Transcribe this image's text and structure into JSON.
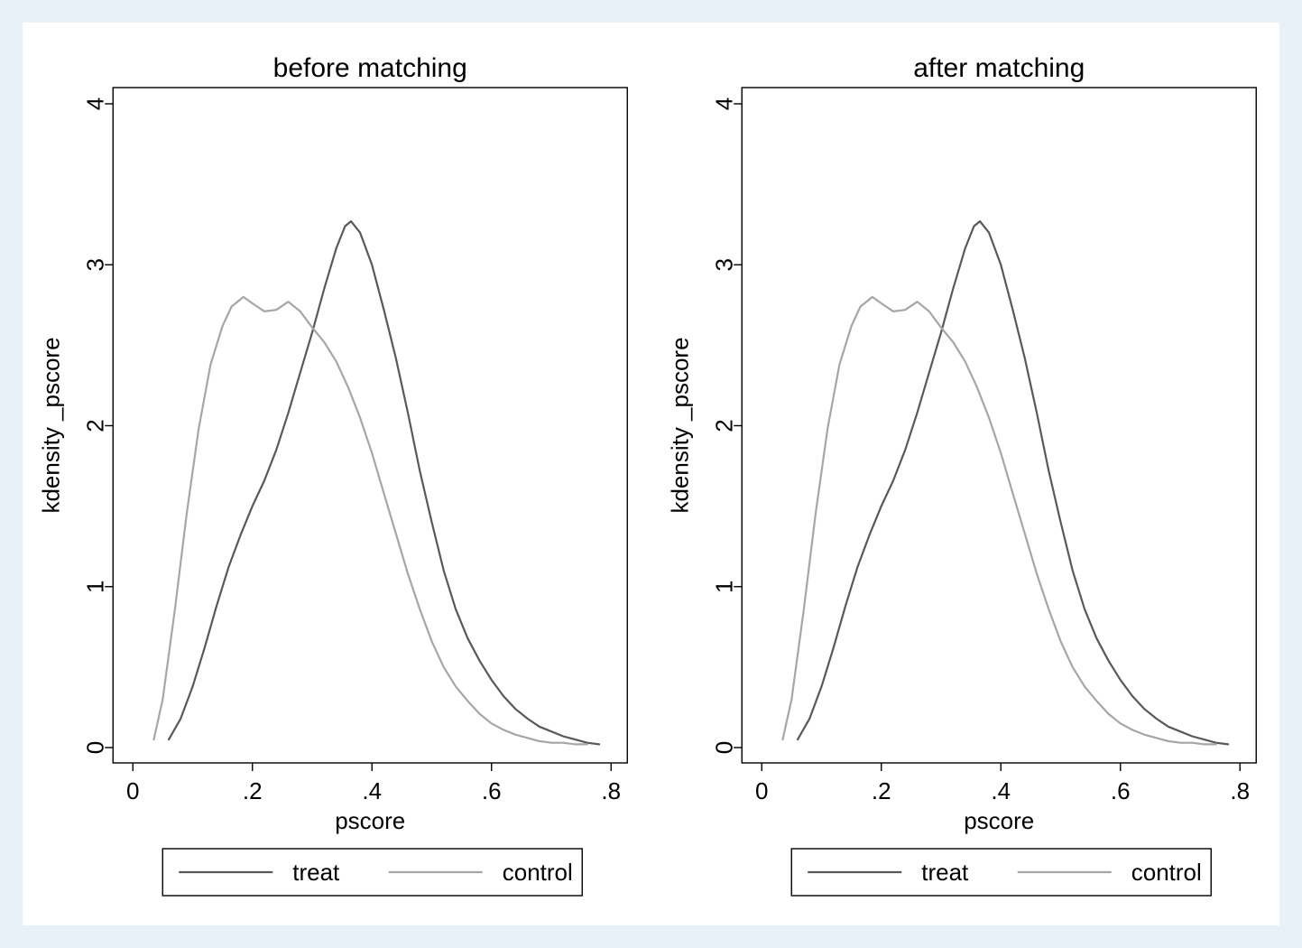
{
  "page": {
    "background_color": "#e8f1f8",
    "figure_background": "#ffffff",
    "frame_color": "#000000",
    "text_color": "#000000"
  },
  "chart_data": [
    {
      "type": "line",
      "title": "before matching",
      "xlabel": "pscore",
      "ylabel": "kdensity _pscore",
      "xlim": [
        0,
        0.8
      ],
      "ylim": [
        0,
        4
      ],
      "xticks": [
        0,
        0.2,
        0.4,
        0.6,
        0.8
      ],
      "xtick_labels": [
        "0",
        ".2",
        ".4",
        ".6",
        ".8"
      ],
      "yticks": [
        0,
        1,
        2,
        3,
        4
      ],
      "ytick_labels": [
        "0",
        "1",
        "2",
        "3",
        "4"
      ],
      "grid": false,
      "legend_position": "bottom",
      "series": [
        {
          "name": "treat",
          "color": "#595959",
          "x": [
            0.06,
            0.08,
            0.1,
            0.12,
            0.14,
            0.16,
            0.18,
            0.2,
            0.22,
            0.24,
            0.26,
            0.28,
            0.3,
            0.32,
            0.34,
            0.355,
            0.365,
            0.38,
            0.4,
            0.42,
            0.44,
            0.46,
            0.48,
            0.5,
            0.52,
            0.54,
            0.56,
            0.58,
            0.6,
            0.62,
            0.64,
            0.66,
            0.68,
            0.7,
            0.72,
            0.74,
            0.76,
            0.78
          ],
          "y": [
            0.05,
            0.18,
            0.38,
            0.62,
            0.88,
            1.12,
            1.32,
            1.5,
            1.66,
            1.85,
            2.08,
            2.33,
            2.58,
            2.85,
            3.1,
            3.24,
            3.27,
            3.2,
            3.0,
            2.72,
            2.42,
            2.08,
            1.72,
            1.4,
            1.1,
            0.86,
            0.68,
            0.54,
            0.42,
            0.32,
            0.24,
            0.18,
            0.13,
            0.1,
            0.07,
            0.05,
            0.03,
            0.02
          ]
        },
        {
          "name": "control",
          "color": "#a6a6a6",
          "x": [
            0.035,
            0.05,
            0.07,
            0.09,
            0.11,
            0.13,
            0.15,
            0.165,
            0.185,
            0.2,
            0.22,
            0.24,
            0.26,
            0.28,
            0.3,
            0.32,
            0.34,
            0.36,
            0.38,
            0.4,
            0.42,
            0.44,
            0.46,
            0.48,
            0.5,
            0.52,
            0.54,
            0.56,
            0.58,
            0.6,
            0.62,
            0.64,
            0.66,
            0.68,
            0.7,
            0.72,
            0.74,
            0.76
          ],
          "y": [
            0.05,
            0.3,
            0.85,
            1.45,
            1.98,
            2.38,
            2.62,
            2.74,
            2.8,
            2.76,
            2.71,
            2.72,
            2.77,
            2.71,
            2.61,
            2.52,
            2.4,
            2.24,
            2.05,
            1.83,
            1.58,
            1.33,
            1.08,
            0.86,
            0.66,
            0.5,
            0.38,
            0.29,
            0.21,
            0.15,
            0.11,
            0.08,
            0.06,
            0.04,
            0.03,
            0.03,
            0.02,
            0.02
          ]
        }
      ]
    },
    {
      "type": "line",
      "title": "after matching",
      "xlabel": "pscore",
      "ylabel": "kdensity _pscore",
      "xlim": [
        0,
        0.8
      ],
      "ylim": [
        0,
        4
      ],
      "xticks": [
        0,
        0.2,
        0.4,
        0.6,
        0.8
      ],
      "xtick_labels": [
        "0",
        ".2",
        ".4",
        ".6",
        ".8"
      ],
      "yticks": [
        0,
        1,
        2,
        3,
        4
      ],
      "ytick_labels": [
        "0",
        "1",
        "2",
        "3",
        "4"
      ],
      "grid": false,
      "legend_position": "bottom",
      "series": [
        {
          "name": "treat",
          "color": "#595959",
          "x": [
            0.06,
            0.08,
            0.1,
            0.12,
            0.14,
            0.16,
            0.18,
            0.2,
            0.22,
            0.24,
            0.26,
            0.28,
            0.3,
            0.32,
            0.34,
            0.355,
            0.365,
            0.38,
            0.4,
            0.42,
            0.44,
            0.46,
            0.48,
            0.5,
            0.52,
            0.54,
            0.56,
            0.58,
            0.6,
            0.62,
            0.64,
            0.66,
            0.68,
            0.7,
            0.72,
            0.74,
            0.76,
            0.78
          ],
          "y": [
            0.05,
            0.18,
            0.38,
            0.62,
            0.88,
            1.12,
            1.32,
            1.5,
            1.66,
            1.85,
            2.08,
            2.33,
            2.58,
            2.85,
            3.1,
            3.24,
            3.27,
            3.2,
            3.0,
            2.72,
            2.42,
            2.08,
            1.72,
            1.4,
            1.1,
            0.86,
            0.68,
            0.54,
            0.42,
            0.32,
            0.24,
            0.18,
            0.13,
            0.1,
            0.07,
            0.05,
            0.03,
            0.02
          ]
        },
        {
          "name": "control",
          "color": "#a6a6a6",
          "x": [
            0.035,
            0.05,
            0.07,
            0.09,
            0.11,
            0.13,
            0.15,
            0.165,
            0.185,
            0.2,
            0.22,
            0.24,
            0.26,
            0.28,
            0.3,
            0.32,
            0.34,
            0.36,
            0.38,
            0.4,
            0.42,
            0.44,
            0.46,
            0.48,
            0.5,
            0.52,
            0.54,
            0.56,
            0.58,
            0.6,
            0.62,
            0.64,
            0.66,
            0.68,
            0.7,
            0.72,
            0.74,
            0.76
          ],
          "y": [
            0.05,
            0.3,
            0.85,
            1.45,
            1.98,
            2.38,
            2.62,
            2.74,
            2.8,
            2.76,
            2.71,
            2.72,
            2.77,
            2.71,
            2.61,
            2.52,
            2.4,
            2.24,
            2.05,
            1.83,
            1.58,
            1.33,
            1.08,
            0.86,
            0.66,
            0.5,
            0.38,
            0.29,
            0.21,
            0.15,
            0.11,
            0.08,
            0.06,
            0.04,
            0.03,
            0.03,
            0.02,
            0.02
          ]
        }
      ]
    }
  ]
}
